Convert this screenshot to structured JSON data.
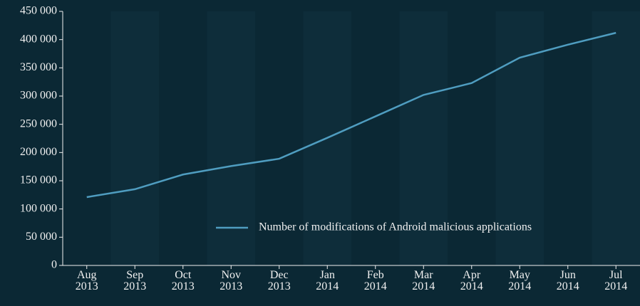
{
  "chart_data": {
    "type": "line",
    "categories": [
      "Aug 2013",
      "Sep 2013",
      "Oct 2013",
      "Nov 2013",
      "Dec 2013",
      "Jan 2014",
      "Feb 2014",
      "Mar 2014",
      "Apr 2014",
      "May 2014",
      "Jun 2014",
      "Jul 2014"
    ],
    "series": [
      {
        "name": "Number of modifications of Android malicious applications",
        "color": "#4f9dc0",
        "values": [
          121000,
          135000,
          161000,
          176000,
          189000,
          226000,
          264000,
          302000,
          323000,
          368000,
          391000,
          412000
        ]
      }
    ],
    "ylim": [
      0,
      450000
    ],
    "yticks": [
      0,
      {
        "value": 50000,
        "label": "50 000"
      },
      {
        "value": 100000,
        "label": "100 000"
      },
      {
        "value": 150000,
        "label": "150 000"
      },
      {
        "value": 200000,
        "label": "200 000"
      },
      {
        "value": 250000,
        "label": "250 000"
      },
      {
        "value": 300000,
        "label": "300 000"
      },
      {
        "value": 350000,
        "label": "350 000"
      },
      {
        "value": 400000,
        "label": "400 000"
      },
      {
        "value": 450000,
        "label": "450 000"
      }
    ],
    "legend": "lower center"
  }
}
